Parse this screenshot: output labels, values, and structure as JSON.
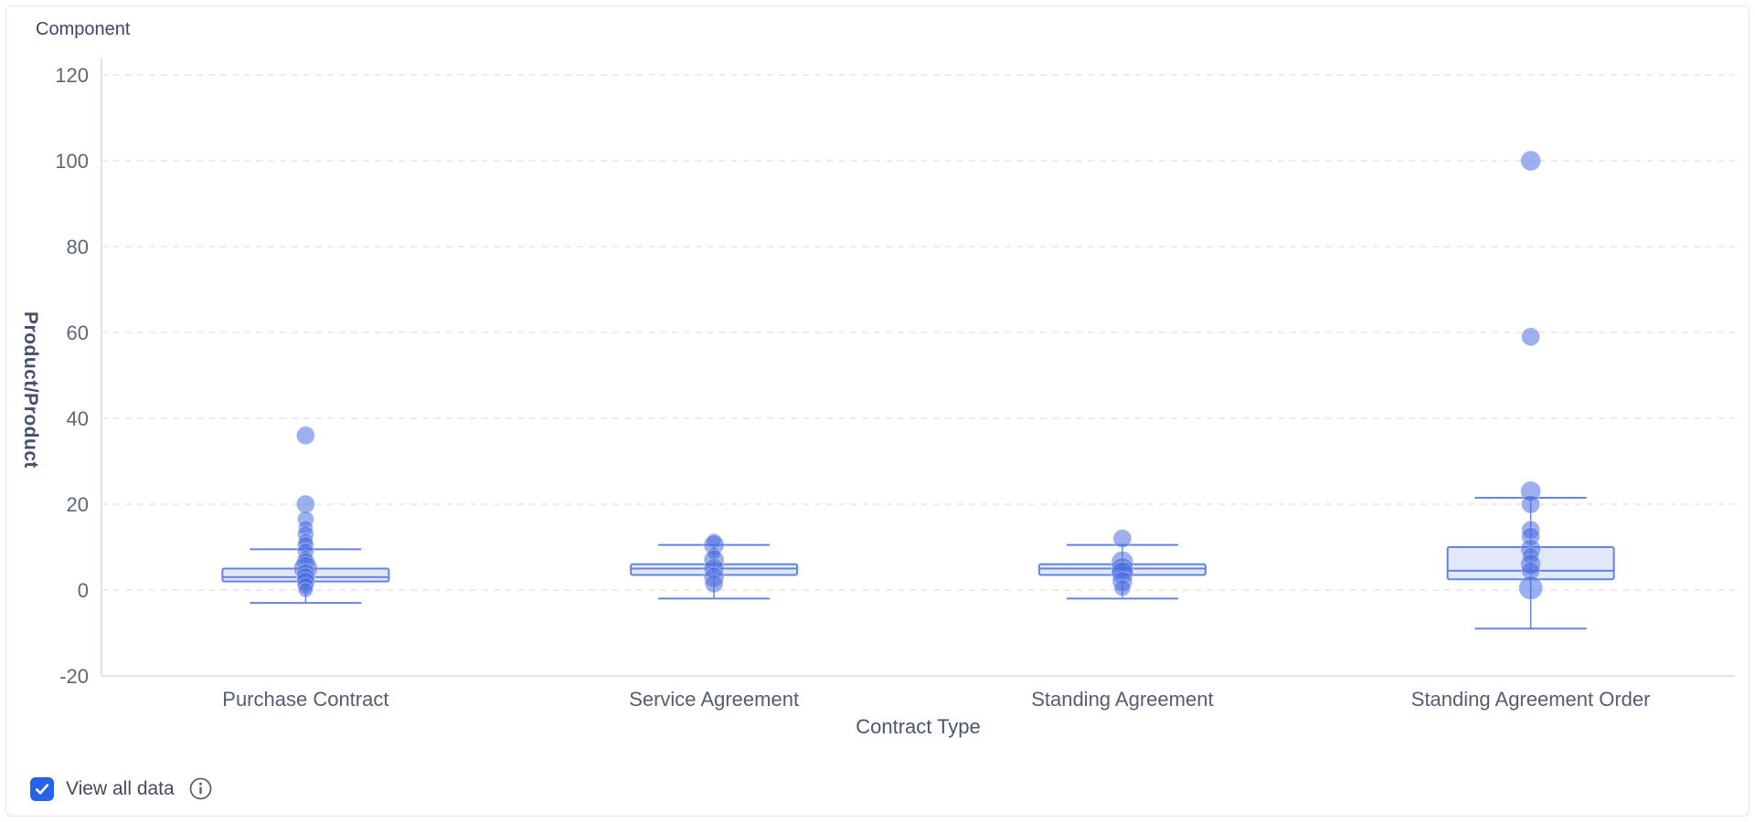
{
  "card": {
    "title": "Component"
  },
  "controls": {
    "view_all_label": "View all data",
    "checkbox_checked": true
  },
  "colors": {
    "accent_blue": "#2563e8",
    "box_stroke": "#6384e3",
    "point_fill": "#4a6ee0",
    "grid": "#e5e6ea",
    "axis": "#d9dce1",
    "tick_text": "#5d6876",
    "category_text": "#535e70"
  },
  "chart_data": {
    "type": "boxplot",
    "title": "Component",
    "xlabel": "Contract Type",
    "ylabel": "Product/Product",
    "ylim": [
      -20,
      124
    ],
    "yticks": [
      -20,
      0,
      20,
      40,
      60,
      80,
      100,
      120
    ],
    "grid": "dashed-horizontal",
    "legend": "none",
    "categories": [
      "Purchase Contract",
      "Service Agreement",
      "Standing Agreement",
      "Standing Agreement Order"
    ],
    "series": [
      {
        "name": "Purchase Contract",
        "whisker_low": -3,
        "q1": 2,
        "median": 3,
        "q3": 5,
        "whisker_high": 9.5,
        "points": [
          {
            "v": 36,
            "r": 10
          },
          {
            "v": 20,
            "r": 10
          },
          {
            "v": 16.5,
            "r": 9
          },
          {
            "v": 14.5,
            "r": 8
          },
          {
            "v": 13,
            "r": 9
          },
          {
            "v": 11.5,
            "r": 8
          },
          {
            "v": 10.5,
            "r": 9
          },
          {
            "v": 9,
            "r": 9
          },
          {
            "v": 7.5,
            "r": 8
          },
          {
            "v": 6.5,
            "r": 10
          },
          {
            "v": 5,
            "r": 13
          },
          {
            "v": 4,
            "r": 10
          },
          {
            "v": 3,
            "r": 10
          },
          {
            "v": 2,
            "r": 10
          },
          {
            "v": 1,
            "r": 9
          },
          {
            "v": 0,
            "r": 8
          }
        ]
      },
      {
        "name": "Service Agreement",
        "whisker_low": -2,
        "q1": 3.5,
        "median": 5,
        "q3": 6,
        "whisker_high": 10.5,
        "points": [
          {
            "v": 11.5,
            "r": 8
          },
          {
            "v": 10.5,
            "r": 11
          },
          {
            "v": 8.5,
            "r": 7
          },
          {
            "v": 7,
            "r": 11
          },
          {
            "v": 5,
            "r": 11
          },
          {
            "v": 3,
            "r": 11
          },
          {
            "v": 1.5,
            "r": 10
          }
        ]
      },
      {
        "name": "Standing Agreement",
        "whisker_low": -2,
        "q1": 3.5,
        "median": 5,
        "q3": 6,
        "whisker_high": 10.5,
        "points": [
          {
            "v": 12,
            "r": 10
          },
          {
            "v": 6.5,
            "r": 12
          },
          {
            "v": 5,
            "r": 12
          },
          {
            "v": 4,
            "r": 12
          },
          {
            "v": 2,
            "r": 11
          },
          {
            "v": 0.5,
            "r": 9
          }
        ]
      },
      {
        "name": "Standing Agreement Order",
        "whisker_low": -9,
        "q1": 2.5,
        "median": 4.5,
        "q3": 10,
        "whisker_high": 21.5,
        "points": [
          {
            "v": 100,
            "r": 11
          },
          {
            "v": 59,
            "r": 10
          },
          {
            "v": 23,
            "r": 11
          },
          {
            "v": 20,
            "r": 10
          },
          {
            "v": 14,
            "r": 10
          },
          {
            "v": 12.5,
            "r": 10
          },
          {
            "v": 9.5,
            "r": 11
          },
          {
            "v": 8,
            "r": 9
          },
          {
            "v": 6,
            "r": 11
          },
          {
            "v": 4.5,
            "r": 10
          },
          {
            "v": 0.5,
            "r": 13
          }
        ]
      }
    ]
  }
}
